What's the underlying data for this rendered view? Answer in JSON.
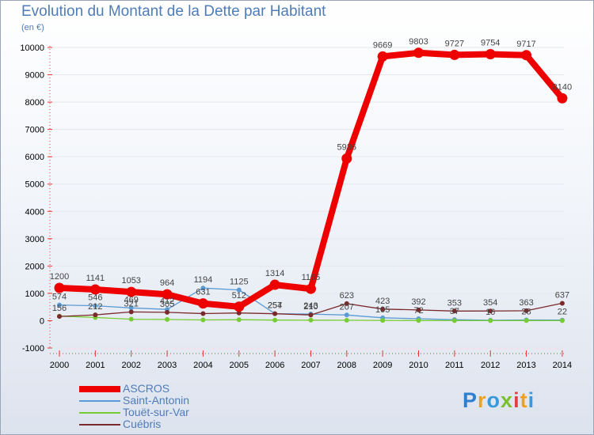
{
  "header": {
    "title": "Evolution du Montant de la Dette par Habitant",
    "unit": "(en €)"
  },
  "logo": {
    "text": "Proxiti",
    "letters": [
      {
        "ch": "P",
        "color": "#2d7fd2"
      },
      {
        "ch": "r",
        "color": "#f0a020"
      },
      {
        "ch": "o",
        "color": "#3a9ad9"
      },
      {
        "ch": "x",
        "color": "#7bbf2e"
      },
      {
        "ch": "i",
        "color": "#e04040"
      },
      {
        "ch": "t",
        "color": "#f0a020"
      },
      {
        "ch": "i",
        "color": "#3a9ad9"
      }
    ]
  },
  "chart_data": {
    "type": "line",
    "title": "Evolution du Montant de la Dette par Habitant",
    "ylabel": "(en €)",
    "xlabel": "",
    "ylim": [
      -1000,
      10000
    ],
    "yticks": [
      "-1000",
      "0",
      "1000",
      "2000",
      "3000",
      "4000",
      "5000",
      "6000",
      "7000",
      "8000",
      "9000",
      "10000"
    ],
    "ytick_values": [
      -1000,
      0,
      1000,
      2000,
      3000,
      4000,
      5000,
      6000,
      7000,
      8000,
      9000,
      10000
    ],
    "categories": [
      "2000",
      "2001",
      "2002",
      "2003",
      "2004",
      "2005",
      "2006",
      "2007",
      "2008",
      "2009",
      "2010",
      "2011",
      "2012",
      "2013",
      "2014"
    ],
    "series": [
      {
        "name": "ASCROS",
        "color": "#ee0000",
        "strong": true,
        "values": [
          1200,
          1141,
          1053,
          964,
          631,
          512,
          1314,
          1165,
          5936,
          9669,
          9803,
          9727,
          9754,
          9717,
          8140
        ],
        "labels": [
          "1200",
          "1141",
          "1053",
          "964",
          "631",
          "512",
          "1314",
          "1165",
          "5936",
          "9669",
          "9803",
          "9727",
          "9754",
          "9717",
          "8140"
        ]
      },
      {
        "name": "Saint-Antonin",
        "color": "#5b9bd5",
        "strong": false,
        "values": [
          574,
          546,
          469,
          412,
          1194,
          1125,
          257,
          243,
          207,
          105,
          72,
          37,
          16,
          28,
          22
        ],
        "labels": [
          "574",
          "546",
          "469",
          "412",
          "1194",
          "1125",
          "257",
          "243",
          "207",
          "105",
          "72",
          "37",
          "16",
          "28",
          "22"
        ]
      },
      {
        "name": "Touët-sur-Var",
        "color": "#77cc33",
        "strong": false,
        "values": [
          166,
          116,
          55,
          45,
          29,
          35,
          22,
          20,
          15,
          10,
          5,
          2,
          2,
          5,
          2
        ],
        "labels": [
          "",
          "",
          "",
          "",
          "",
          "",
          "",
          "",
          "",
          "",
          "",
          "",
          "",
          "",
          ""
        ]
      },
      {
        "name": "Cuébris",
        "color": "#7a2a2a",
        "strong": false,
        "values": [
          156,
          212,
          321,
          305,
          260,
          282,
          254,
          210,
          623,
          423,
          392,
          353,
          354,
          363,
          637
        ],
        "labels": [
          "156",
          "212",
          "321",
          "305",
          "",
          "",
          "254",
          "210",
          "623",
          "423",
          "392",
          "353",
          "354",
          "363",
          "637"
        ]
      }
    ]
  }
}
